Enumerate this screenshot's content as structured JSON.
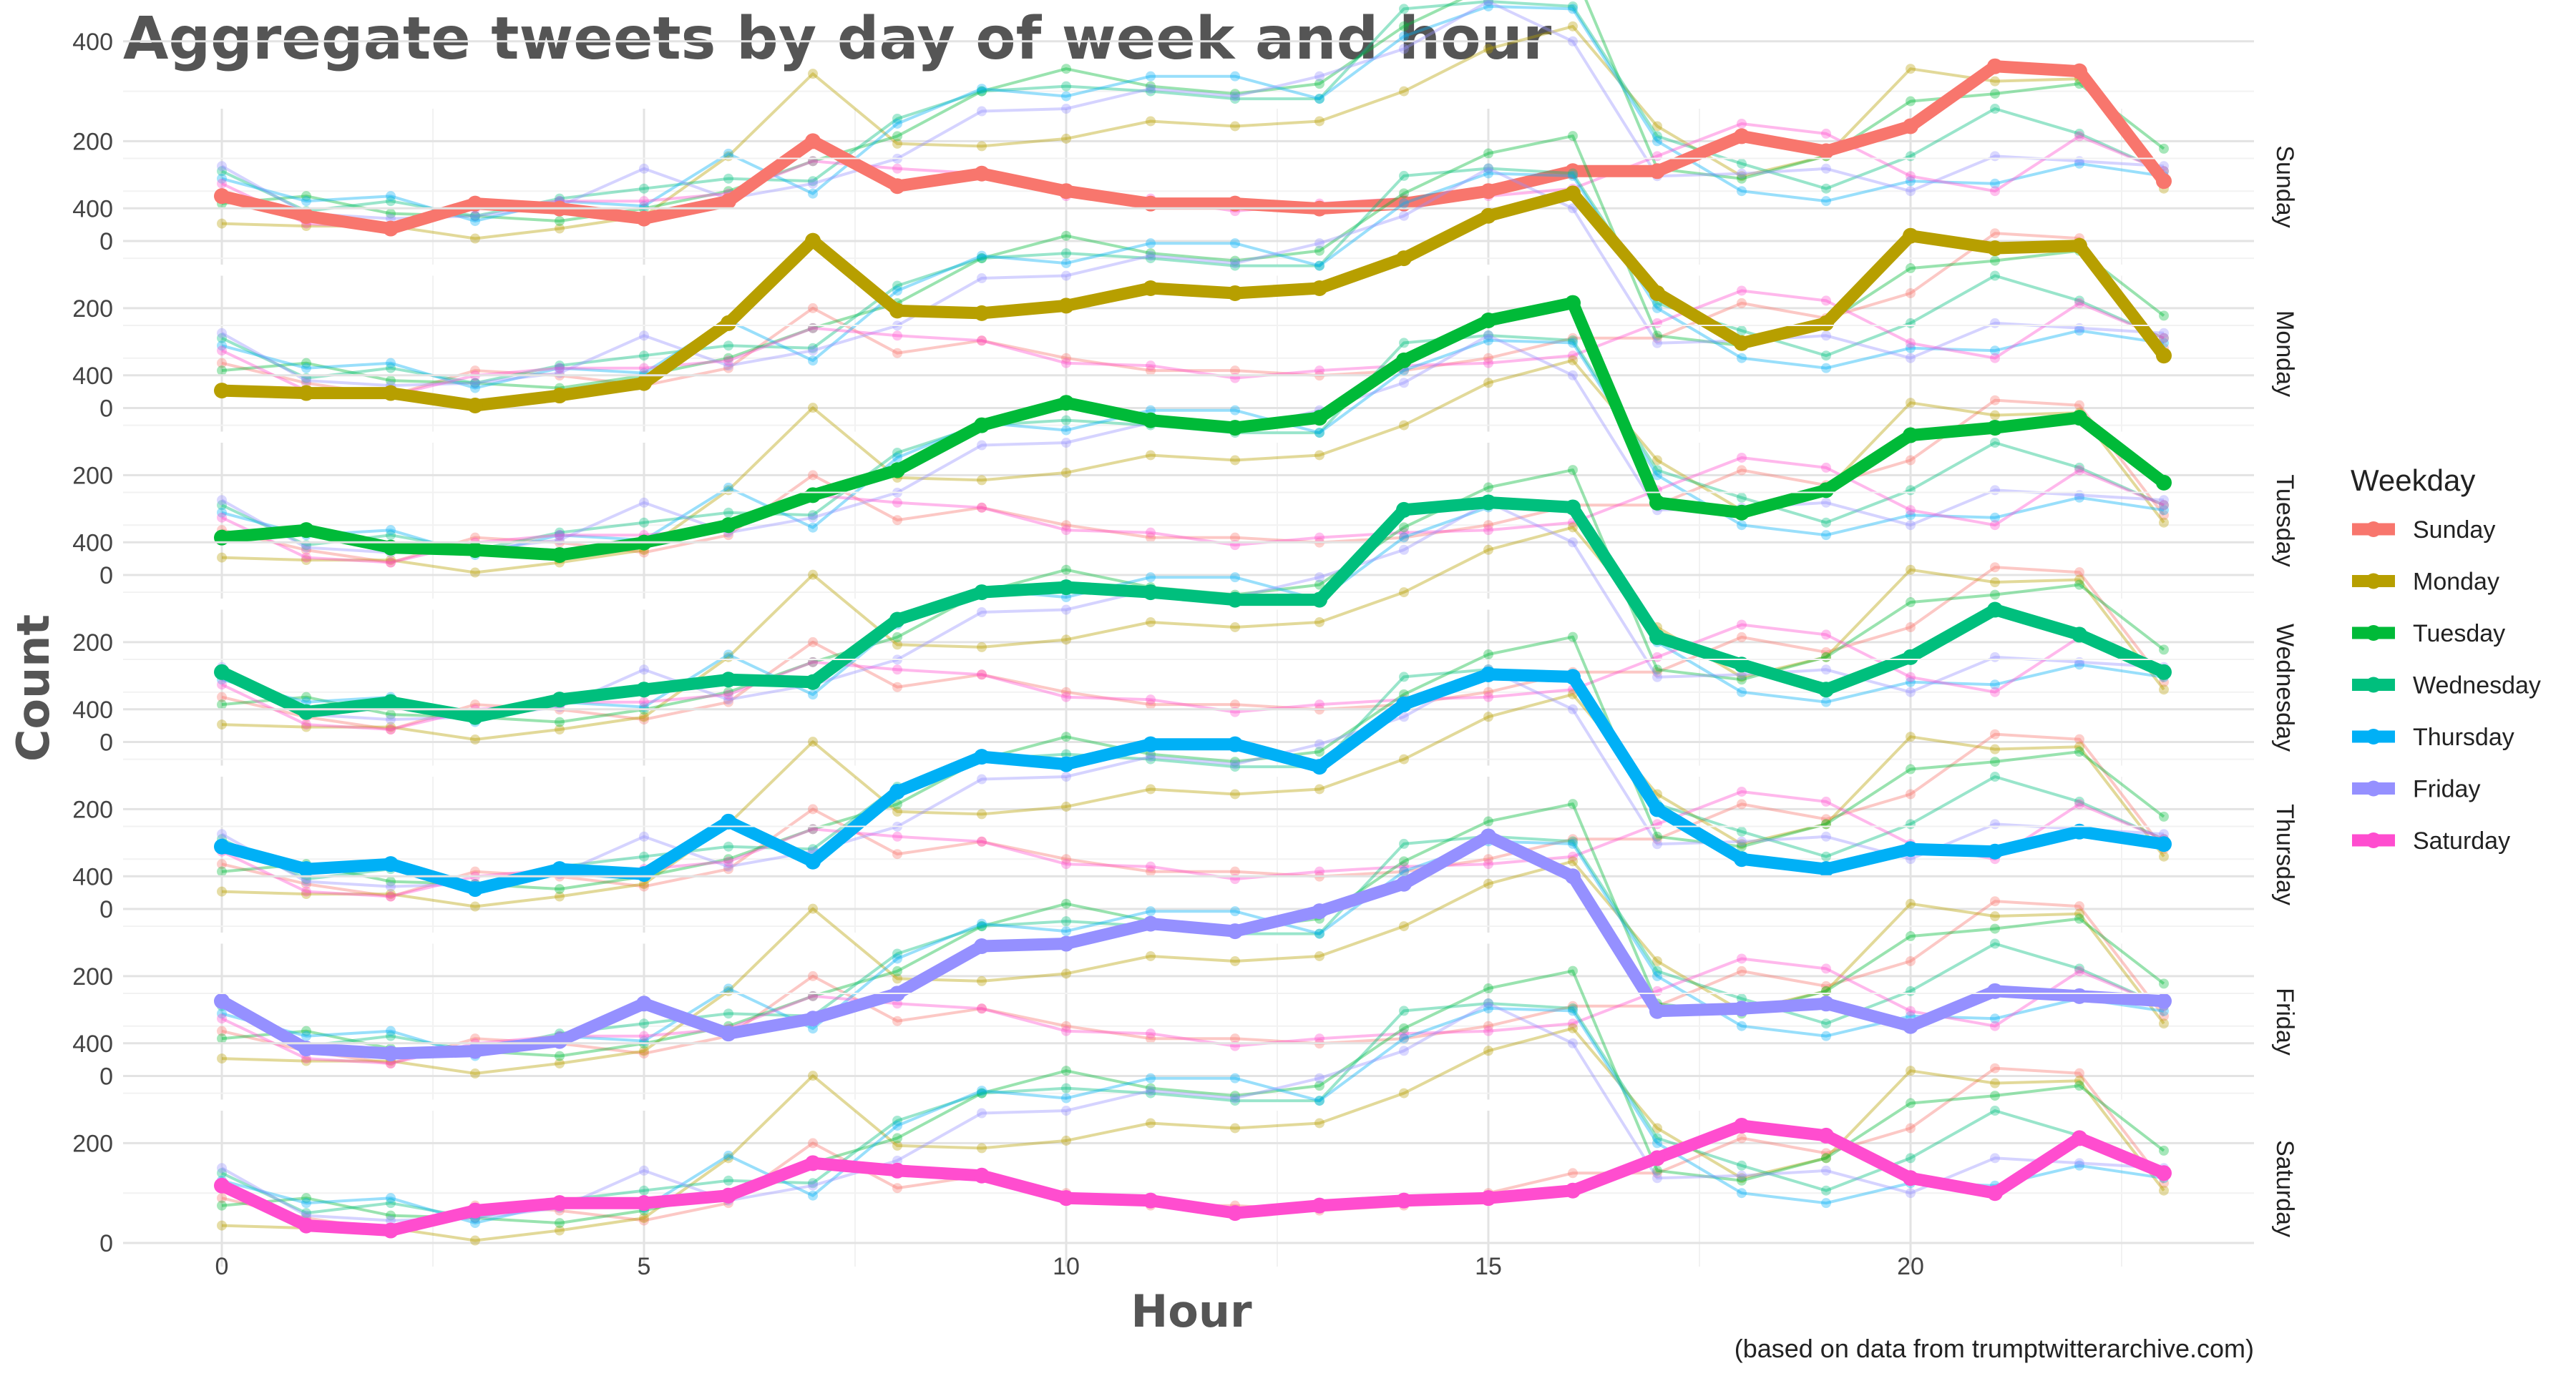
{
  "chart_data": {
    "type": "line",
    "title": "Aggregate tweets by day of week and hour",
    "xlabel": "Hour",
    "ylabel": "Count",
    "caption": "(based on data from trumptwitterarchive.com)",
    "legend_title": "Weekday",
    "legend_position": "right",
    "grid": true,
    "xlim": [
      0,
      23
    ],
    "ylim": [
      0,
      550
    ],
    "x_ticks": [
      0,
      5,
      10,
      15,
      20
    ],
    "y_ticks": [
      0,
      200,
      400
    ],
    "panels": [
      "Sunday",
      "Monday",
      "Tuesday",
      "Wednesday",
      "Thursday",
      "Friday",
      "Saturday"
    ],
    "x": [
      0,
      1,
      2,
      3,
      4,
      5,
      6,
      7,
      8,
      9,
      10,
      11,
      12,
      13,
      14,
      15,
      16,
      17,
      18,
      19,
      20,
      21,
      22,
      23
    ],
    "series": [
      {
        "name": "Sunday",
        "color": "#F8766D",
        "values": [
          90,
          50,
          25,
          75,
          65,
          45,
          80,
          200,
          110,
          135,
          100,
          75,
          75,
          65,
          75,
          100,
          140,
          140,
          210,
          180,
          230,
          350,
          340,
          120
        ]
      },
      {
        "name": "Monday",
        "color": "#B79F00",
        "values": [
          35,
          30,
          30,
          5,
          25,
          50,
          170,
          335,
          195,
          190,
          205,
          240,
          230,
          240,
          300,
          385,
          430,
          230,
          130,
          170,
          345,
          320,
          325,
          105
        ]
      },
      {
        "name": "Tuesday",
        "color": "#00BA38",
        "values": [
          75,
          90,
          55,
          50,
          40,
          65,
          100,
          160,
          210,
          300,
          345,
          310,
          295,
          315,
          430,
          510,
          545,
          145,
          125,
          170,
          280,
          295,
          315,
          185
        ]
      },
      {
        "name": "Wednesday",
        "color": "#00BF7D",
        "values": [
          140,
          60,
          80,
          50,
          85,
          105,
          125,
          120,
          245,
          300,
          310,
          300,
          285,
          285,
          465,
          480,
          470,
          210,
          155,
          105,
          170,
          265,
          215,
          140
        ]
      },
      {
        "name": "Thursday",
        "color": "#00B0F6",
        "values": [
          125,
          80,
          90,
          40,
          80,
          70,
          175,
          95,
          235,
          305,
          290,
          330,
          330,
          285,
          410,
          470,
          465,
          200,
          100,
          80,
          120,
          115,
          155,
          130
        ]
      },
      {
        "name": "Friday",
        "color": "#9590FF",
        "values": [
          150,
          55,
          45,
          50,
          70,
          145,
          85,
          115,
          165,
          260,
          265,
          305,
          290,
          330,
          385,
          480,
          400,
          130,
          135,
          145,
          100,
          170,
          160,
          150
        ]
      },
      {
        "name": "Saturday",
        "color": "#FF4DCF",
        "values": [
          115,
          35,
          25,
          65,
          80,
          80,
          95,
          160,
          145,
          135,
          90,
          85,
          60,
          75,
          85,
          90,
          105,
          170,
          235,
          215,
          130,
          100,
          210,
          140
        ]
      }
    ]
  }
}
